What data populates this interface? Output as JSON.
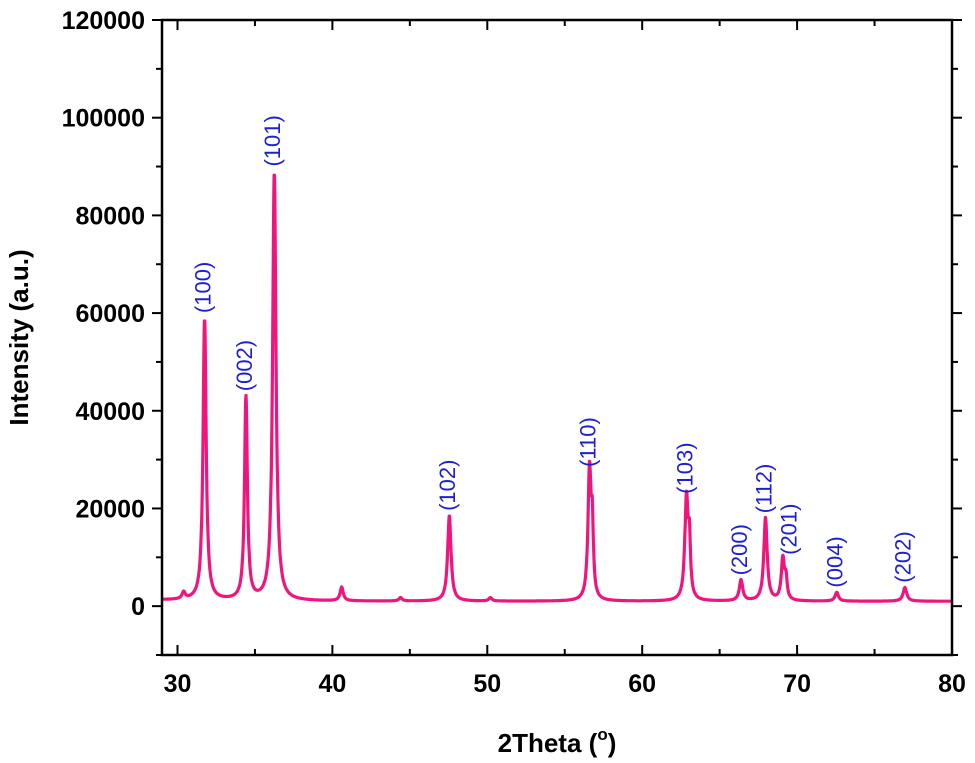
{
  "chart_data": {
    "type": "line",
    "xlabel": "2Theta (",
    "xlabel_superscript": "o",
    "xlabel_close": ")",
    "ylabel": "Intensity (a.u.)",
    "xlim": [
      29,
      80
    ],
    "ylim": [
      -10000,
      120000
    ],
    "x_ticks": [
      30,
      40,
      50,
      60,
      70,
      80
    ],
    "y_ticks": [
      0,
      20000,
      40000,
      60000,
      80000,
      100000,
      120000
    ],
    "line_color": "#f0157e",
    "label_color": "#1f1fd2",
    "baseline": 1000,
    "peaks": [
      {
        "x": 30.4,
        "y": 1400,
        "w": 0.12
      },
      {
        "x": 31.75,
        "y": 57500,
        "w": 0.12
      },
      {
        "x": 34.42,
        "y": 41500,
        "w": 0.11
      },
      {
        "x": 36.25,
        "y": 87500,
        "w": 0.13
      },
      {
        "x": 40.6,
        "y": 2800,
        "w": 0.12
      },
      {
        "x": 44.4,
        "y": 700,
        "w": 0.12
      },
      {
        "x": 47.55,
        "y": 17500,
        "w": 0.13
      },
      {
        "x": 50.2,
        "y": 700,
        "w": 0.12
      },
      {
        "x": 56.6,
        "y": 26500,
        "w": 0.12
      },
      {
        "x": 56.78,
        "y": 13000,
        "w": 0.08
      },
      {
        "x": 62.86,
        "y": 21000,
        "w": 0.13
      },
      {
        "x": 63.05,
        "y": 10000,
        "w": 0.08
      },
      {
        "x": 66.38,
        "y": 4300,
        "w": 0.13
      },
      {
        "x": 67.96,
        "y": 17000,
        "w": 0.13
      },
      {
        "x": 69.08,
        "y": 8500,
        "w": 0.12
      },
      {
        "x": 69.28,
        "y": 4000,
        "w": 0.09
      },
      {
        "x": 72.56,
        "y": 1800,
        "w": 0.13
      },
      {
        "x": 76.96,
        "y": 2800,
        "w": 0.14
      }
    ],
    "annotations": [
      {
        "text": "(100)",
        "x": 31.75,
        "y": 60000
      },
      {
        "text": "(002)",
        "x": 34.42,
        "y": 44000
      },
      {
        "text": "(101)",
        "x": 36.25,
        "y": 90000
      },
      {
        "text": "(102)",
        "x": 47.55,
        "y": 19500
      },
      {
        "text": "(110)",
        "x": 56.6,
        "y": 28500
      },
      {
        "text": "(103)",
        "x": 62.86,
        "y": 23000
      },
      {
        "text": "(200)",
        "x": 66.38,
        "y": 6300
      },
      {
        "text": "(112)",
        "x": 67.96,
        "y": 19000
      },
      {
        "text": "(201)",
        "x": 69.6,
        "y": 10500
      },
      {
        "text": "(004)",
        "x": 72.56,
        "y": 3800
      },
      {
        "text": "(202)",
        "x": 76.96,
        "y": 4800
      }
    ]
  }
}
